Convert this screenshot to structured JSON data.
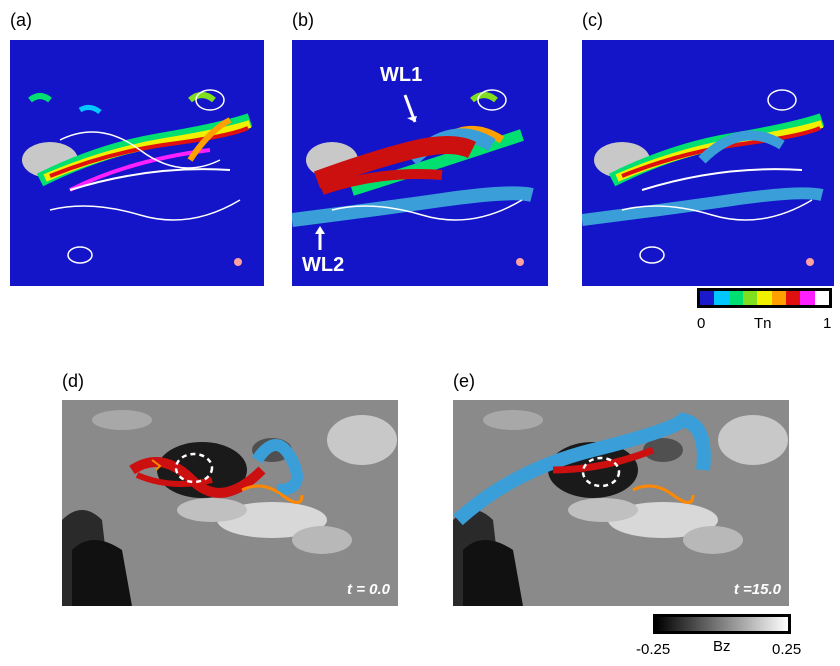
{
  "panels": {
    "a": {
      "label": "(a)"
    },
    "b": {
      "label": "(b)",
      "annotations": {
        "wl1": "WL1",
        "wl2": "WL2"
      }
    },
    "c": {
      "label": "(c)"
    },
    "d": {
      "label": "(d)",
      "time": "t = 0.0"
    },
    "e": {
      "label": "(e)",
      "time": "t =15.0"
    }
  },
  "colorbar_tn": {
    "min": "0",
    "label": "Tn",
    "max": "1",
    "colors": [
      "#1a1acc",
      "#00c8ff",
      "#00e070",
      "#80e020",
      "#f0f000",
      "#ffa000",
      "#e01010",
      "#ff20ff",
      "#ffffff"
    ]
  },
  "colorbar_bz": {
    "min": "-0.25",
    "label": "Bz",
    "max": "0.25"
  },
  "colors": {
    "background_blue": "#1414c8",
    "flux_rope_red": "#cc1010",
    "field_line_blue": "#3a9fd8"
  }
}
